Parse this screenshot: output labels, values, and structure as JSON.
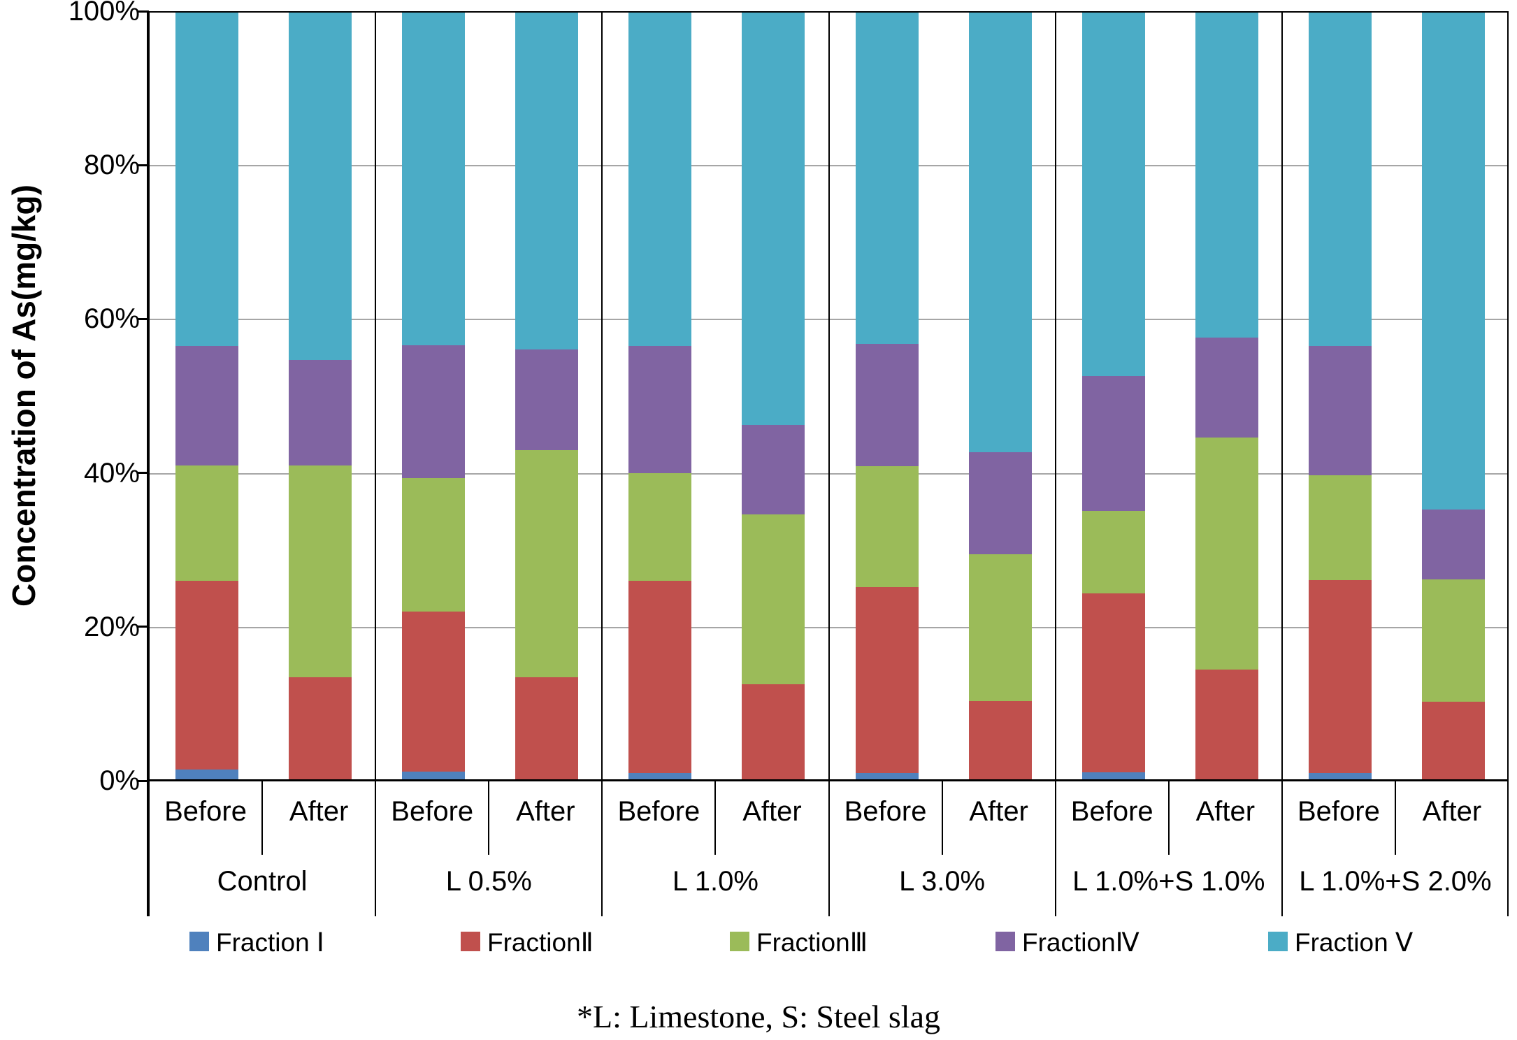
{
  "chart_data": {
    "type": "bar",
    "variant": "100-percent-stacked-column",
    "title": "",
    "ylabel": "Concentration of As(mg/kg)",
    "xlabel": "",
    "y_ticks": [
      "0%",
      "20%",
      "40%",
      "60%",
      "80%",
      "100%"
    ],
    "ylim": [
      0,
      100
    ],
    "grid": "horizontal, 20% steps",
    "legend_position": "bottom",
    "groups": [
      "Control",
      "L 0.5%",
      "L 1.0%",
      "L 3.0%",
      "L 1.0%+S 1.0%",
      "L 1.0%+S 2.0%"
    ],
    "bar_labels": [
      "Before",
      "After"
    ],
    "bar_order": [
      "Control Before",
      "Control After",
      "L 0.5% Before",
      "L 0.5% After",
      "L 1.0% Before",
      "L 1.0% After",
      "L 3.0% Before",
      "L 3.0% After",
      "L 1.0%+S 1.0% Before",
      "L 1.0%+S 1.0% After",
      "L 1.0%+S 2.0% Before",
      "L 1.0%+S 2.0% After"
    ],
    "series": [
      {
        "name": "Fraction Ⅰ",
        "color": "#4F81BD",
        "values": [
          1.5,
          0,
          1.2,
          0,
          1.0,
          0,
          1.0,
          0,
          1.1,
          0,
          1.0,
          0
        ]
      },
      {
        "name": "FractionⅡ",
        "color": "#C0504D",
        "values": [
          24.5,
          13.4,
          20.8,
          13.4,
          25.0,
          12.5,
          24.2,
          10.4,
          23.2,
          14.4,
          25.1,
          10.3
        ]
      },
      {
        "name": "FractionⅢ",
        "color": "#9BBB59",
        "values": [
          15.0,
          27.6,
          17.3,
          29.6,
          14.0,
          22.1,
          15.7,
          19.0,
          10.8,
          30.2,
          13.6,
          15.9
        ]
      },
      {
        "name": "FractionⅣ",
        "color": "#8064A2",
        "values": [
          15.5,
          13.7,
          17.3,
          13.0,
          16.5,
          11.6,
          15.9,
          13.3,
          17.5,
          13.0,
          16.8,
          9.0
        ]
      },
      {
        "name": "Fraction Ⅴ",
        "color": "#4BACC6",
        "values": [
          43.5,
          45.3,
          43.4,
          44.0,
          43.5,
          53.8,
          43.2,
          57.3,
          47.4,
          42.4,
          43.5,
          64.8
        ]
      }
    ],
    "footnote": "*L: Limestone, S: Steel slag"
  },
  "colors": {
    "background": "#ffffff",
    "axis": "#000000",
    "gridline": "#a6a6a6",
    "text": "#000000"
  }
}
